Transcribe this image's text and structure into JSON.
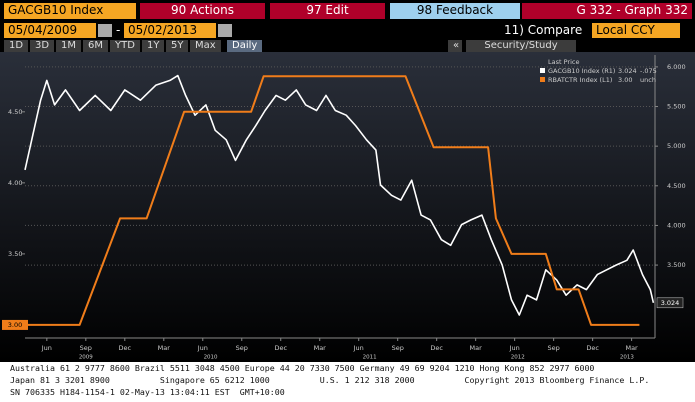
{
  "toolbar": {
    "security": "GACGB10 Index",
    "actions": "90 Actions",
    "edit": "97 Edit",
    "feedback": "98 Feedback",
    "graph": "G 332 - Graph 332",
    "start_date": "05/04/2009",
    "date_sep": "-",
    "end_date": "05/02/2013",
    "compare": "11) Compare",
    "currency": "Local CCY",
    "periods": [
      "1D",
      "3D",
      "1M",
      "6M",
      "YTD",
      "1Y",
      "5Y",
      "Max"
    ],
    "frequency": "Daily",
    "back": "«",
    "study": "Security/Study"
  },
  "chart_data": {
    "type": "line",
    "legend_title": "Last Price",
    "xlim": [
      2009.28,
      2013.32
    ],
    "xticks": [
      {
        "value": 2009.42,
        "label": "Jun"
      },
      {
        "value": 2009.67,
        "label": "Sep"
      },
      {
        "value": 2009.92,
        "label": "Dec"
      },
      {
        "value": 2010.17,
        "label": "Mar"
      },
      {
        "value": 2010.42,
        "label": "Jun"
      },
      {
        "value": 2010.67,
        "label": "Sep"
      },
      {
        "value": 2010.92,
        "label": "Dec"
      },
      {
        "value": 2011.17,
        "label": "Mar"
      },
      {
        "value": 2011.42,
        "label": "Jun"
      },
      {
        "value": 2011.67,
        "label": "Sep"
      },
      {
        "value": 2011.92,
        "label": "Dec"
      },
      {
        "value": 2012.17,
        "label": "Mar"
      },
      {
        "value": 2012.42,
        "label": "Jun"
      },
      {
        "value": 2012.67,
        "label": "Sep"
      },
      {
        "value": 2012.92,
        "label": "Dec"
      },
      {
        "value": 2013.17,
        "label": "Mar"
      }
    ],
    "year_ticks": [
      {
        "value": 2009.67,
        "label": "2009"
      },
      {
        "value": 2010.47,
        "label": "2010"
      },
      {
        "value": 2011.49,
        "label": "2011"
      },
      {
        "value": 2012.44,
        "label": "2012"
      },
      {
        "value": 2013.14,
        "label": "2013"
      }
    ],
    "ylim": [
      2.908,
      4.9
    ],
    "yticks": [
      {
        "value": 3.5,
        "label": "3.50"
      },
      {
        "value": 4,
        "label": "4.00"
      },
      {
        "value": 4.5,
        "label": "4.50"
      }
    ],
    "y2lim": [
      2.58,
      6.15
    ],
    "y2ticks": [
      {
        "value": 3.5,
        "label": "3.500"
      },
      {
        "value": 4,
        "label": "4.000"
      },
      {
        "value": 4.5,
        "label": "4.500"
      },
      {
        "value": 5,
        "label": "5.000"
      },
      {
        "value": 5.5,
        "label": "5.500"
      },
      {
        "value": 6,
        "label": "6.000"
      }
    ],
    "grid": true,
    "series": [
      {
        "name": "GACGB10 Index (R1)",
        "color": "#ffffff",
        "axis": "y2",
        "last_value": 3.024,
        "change": {
          "value": -0.075,
          "label": "-.075"
        },
        "x": [
          2009.28,
          2009.38,
          2009.42,
          2009.47,
          2009.54,
          2009.63,
          2009.73,
          2009.83,
          2009.92,
          2010.02,
          2010.12,
          2010.21,
          2010.26,
          2010.31,
          2010.37,
          2010.44,
          2010.5,
          2010.57,
          2010.63,
          2010.7,
          2010.76,
          2010.82,
          2010.89,
          2010.95,
          2011.02,
          2011.08,
          2011.15,
          2011.21,
          2011.27,
          2011.34,
          2011.4,
          2011.47,
          2011.53,
          2011.56,
          2011.63,
          2011.69,
          2011.76,
          2011.82,
          2011.88,
          2011.95,
          2012.01,
          2012.08,
          2012.14,
          2012.21,
          2012.27,
          2012.34,
          2012.4,
          2012.45,
          2012.5,
          2012.56,
          2012.62,
          2012.69,
          2012.75,
          2012.82,
          2012.88,
          2012.95,
          2013.01,
          2013.07,
          2013.14,
          2013.18,
          2013.24,
          2013.29,
          2013.31
        ],
        "values": [
          4.7,
          5.58,
          5.83,
          5.52,
          5.71,
          5.45,
          5.64,
          5.45,
          5.71,
          5.58,
          5.77,
          5.83,
          5.89,
          5.64,
          5.39,
          5.52,
          5.2,
          5.08,
          4.82,
          5.08,
          5.26,
          5.45,
          5.64,
          5.58,
          5.71,
          5.52,
          5.45,
          5.64,
          5.45,
          5.39,
          5.26,
          5.08,
          4.95,
          4.51,
          4.38,
          4.32,
          4.57,
          4.13,
          4.07,
          3.82,
          3.75,
          4.01,
          4.07,
          4.13,
          3.82,
          3.5,
          3.06,
          2.87,
          3.12,
          3.06,
          3.44,
          3.31,
          3.12,
          3.25,
          3.19,
          3.38,
          3.44,
          3.5,
          3.56,
          3.69,
          3.38,
          3.19,
          3.024
        ]
      },
      {
        "name": "RBATCTR Index (L1)",
        "color": "#f07d1a",
        "last_value": {
          "value": 3,
          "label": "3.00"
        },
        "change": "unch",
        "x": [
          2009.28,
          2009.63,
          2009.89,
          2010.06,
          2010.3,
          2010.73,
          2010.81,
          2011.72,
          2011.9,
          2012.25,
          2012.3,
          2012.4,
          2012.62,
          2012.69,
          2012.83,
          2012.91,
          2013.22
        ],
        "values": [
          3,
          3,
          3.75,
          3.75,
          4.5,
          4.5,
          4.75,
          4.75,
          4.25,
          4.25,
          3.75,
          3.5,
          3.5,
          3.25,
          3.25,
          3,
          3
        ]
      }
    ]
  },
  "footer": {
    "lines": [
      "Australia 61 2 9777 8600 Brazil 5511 3048 4500 Europe 44 20 7330 7500 Germany 49 69 9204 1210 Hong Kong 852 2977 6000",
      "Japan 81 3 3201 8900          Singapore 65 6212 1000          U.S. 1 212 318 2000          Copyright 2013 Bloomberg Finance L.P.",
      "SN 706335 H184-1154-1 02-May-13 13:04:11 EST  GMT+10:00"
    ]
  }
}
